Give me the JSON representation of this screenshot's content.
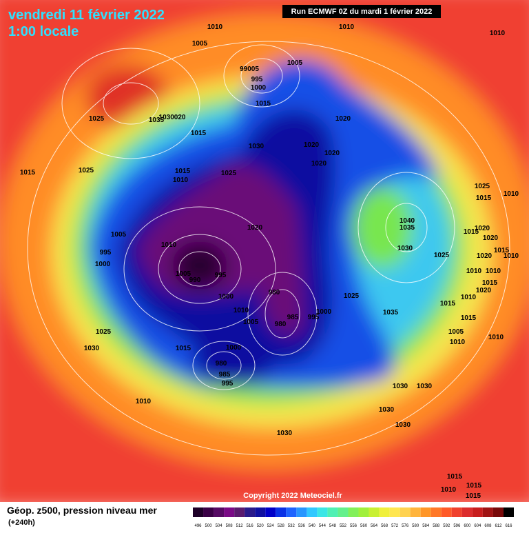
{
  "header": {
    "title": "vendredi 11 février 2022",
    "subtitle": "1:00 locale",
    "run": "Run ECMWF 0Z du mardi 1 février 2022"
  },
  "copyright": "Copyright 2022 Meteociel.fr",
  "legend": {
    "title": "Géop. z500, pression niveau mer",
    "lead": "(+240h)",
    "labels": [
      "496",
      "500",
      "504",
      "508",
      "512",
      "516",
      "520",
      "524",
      "528",
      "532",
      "536",
      "540",
      "544",
      "548",
      "552",
      "556",
      "560",
      "564",
      "568",
      "572",
      "576",
      "580",
      "584",
      "588",
      "592",
      "596",
      "600",
      "604",
      "608",
      "612",
      "616"
    ],
    "colors": [
      "#1e0028",
      "#3a0046",
      "#560a64",
      "#7a0a86",
      "#5a1a6e",
      "#2a1a8a",
      "#1010a0",
      "#0000c8",
      "#0a32e6",
      "#1e64ff",
      "#2896ff",
      "#32c8ff",
      "#3ce6e6",
      "#50f0b4",
      "#64f08c",
      "#82f05a",
      "#a0f03c",
      "#c8f032",
      "#f0f03c",
      "#ffe650",
      "#ffd250",
      "#ffb43c",
      "#ff9628",
      "#ff7828",
      "#ff5a28",
      "#f0412d",
      "#dc2d2d",
      "#c81e1e",
      "#a01414",
      "#780a0a",
      "#000000"
    ]
  },
  "isobars": [
    "1010",
    "1010",
    "1010",
    "1005",
    "1005",
    "99005",
    "995",
    "1000",
    "1015",
    "1025",
    "1035",
    "1030020",
    "1020",
    "1015",
    "1030",
    "1020",
    "1020",
    "1020",
    "1015",
    "1025",
    "1015",
    "1010",
    "1025",
    "1025",
    "1015",
    "1010",
    "1040",
    "1035",
    "1020",
    "1020",
    "1015",
    "1020",
    "1005",
    "1010",
    "995",
    "1000",
    "1030",
    "1025",
    "1020",
    "1015",
    "1010",
    "1005",
    "990",
    "995",
    "1010",
    "1010",
    "1015",
    "1020",
    "1000",
    "980",
    "1025",
    "1010",
    "1015",
    "1010",
    "1000",
    "985",
    "995",
    "980",
    "1005",
    "1035",
    "1015",
    "1025",
    "1005",
    "1010",
    "1010",
    "1030",
    "1015",
    "1000",
    "980",
    "985",
    "995",
    "1030",
    "1030",
    "1010",
    "1030",
    "1030",
    "1030",
    "1015",
    "1015",
    "1010",
    "1015"
  ]
}
